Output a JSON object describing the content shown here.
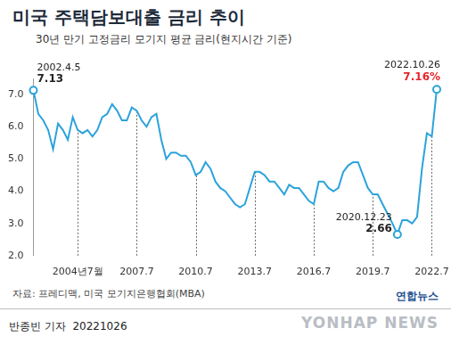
{
  "chart_data": {
    "type": "line",
    "title": "미국 주택담보대출 금리 추이",
    "subtitle": "30년 만기 고정금리 모기지 평균 금리(현지시간 기준)",
    "categories": [
      null,
      null,
      null,
      null,
      null,
      null,
      null,
      null,
      null,
      "2004년7월",
      null,
      null,
      null,
      null,
      null,
      null,
      null,
      null,
      null,
      null,
      null,
      "2007.7",
      null,
      null,
      null,
      null,
      null,
      null,
      null,
      null,
      null,
      null,
      null,
      "2010.7",
      null,
      null,
      null,
      null,
      null,
      null,
      null,
      null,
      null,
      null,
      null,
      "2013.7",
      null,
      null,
      null,
      null,
      null,
      null,
      null,
      null,
      null,
      null,
      null,
      "2016.7",
      null,
      null,
      null,
      null,
      null,
      null,
      null,
      null,
      null,
      null,
      null,
      "2019.7",
      null,
      null,
      null,
      null,
      null,
      null,
      null,
      null,
      null,
      null,
      null,
      "2022.7",
      null
    ],
    "values": [
      7.13,
      6.4,
      6.2,
      5.9,
      5.3,
      6.1,
      5.9,
      5.6,
      6.3,
      5.9,
      5.8,
      5.9,
      5.7,
      5.9,
      6.3,
      6.4,
      6.7,
      6.5,
      6.2,
      6.2,
      6.6,
      6.5,
      6.2,
      6.0,
      6.3,
      6.4,
      5.6,
      5.0,
      5.2,
      5.2,
      5.1,
      5.1,
      4.9,
      4.5,
      4.6,
      4.9,
      4.7,
      4.3,
      4.1,
      4.0,
      3.8,
      3.6,
      3.5,
      3.6,
      4.1,
      4.6,
      4.6,
      4.5,
      4.3,
      4.3,
      4.1,
      3.9,
      4.2,
      4.1,
      4.1,
      3.9,
      3.7,
      3.6,
      4.3,
      4.3,
      4.1,
      4.0,
      4.1,
      4.6,
      4.8,
      4.9,
      4.9,
      4.5,
      4.1,
      3.9,
      3.9,
      3.6,
      3.3,
      3.0,
      2.66,
      3.1,
      3.1,
      3.0,
      3.2,
      4.7,
      5.8,
      5.7,
      7.16
    ],
    "color": "#2ba3db",
    "ylim": [
      2,
      7.5
    ],
    "yticks": [
      {
        "value": 2,
        "label": "2.0"
      },
      {
        "value": 3,
        "label": "3.0"
      },
      {
        "value": 4,
        "label": "4.0"
      },
      {
        "value": 5,
        "label": "5.0"
      },
      {
        "value": 6,
        "label": "6.0"
      },
      {
        "value": 7,
        "label": "7.0"
      }
    ],
    "grid": "x",
    "annotations": [
      {
        "date": "2002.4.5",
        "value": 7.13,
        "label": "7.13"
      },
      {
        "date": "2020.12.23",
        "value": 2.66,
        "label": "2.66"
      },
      {
        "date": "2022.10.26",
        "value": 7.16,
        "label": "7.16%",
        "color": "#e5252a"
      }
    ]
  },
  "source": "자료: 프레디맥, 미국 모기지은행협회(MBA)",
  "credit": "반종빈 기자  20221026",
  "logo": "연합뉴스",
  "watermark": "YONHAP NEWS"
}
